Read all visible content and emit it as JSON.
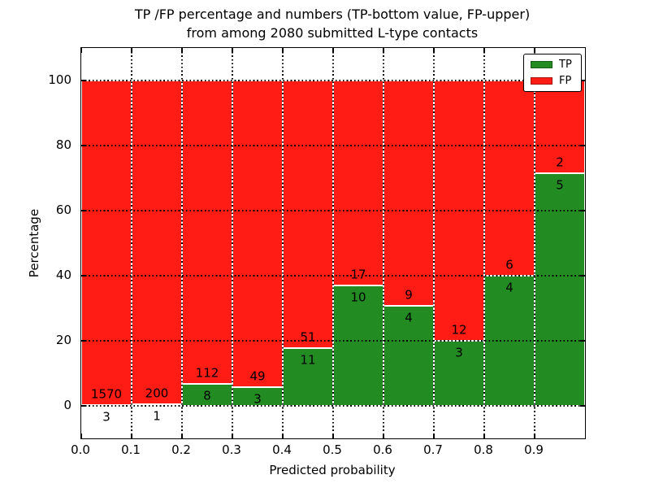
{
  "title": {
    "line1": "TP /FP percentage and numbers (TP-bottom value, FP-upper)",
    "line2": "from among 2080 submitted L-type contacts"
  },
  "axes": {
    "ylabel": "Percentage",
    "xlabel": "Predicted probability",
    "yticks": [
      0,
      20,
      40,
      60,
      80,
      100
    ],
    "xticks": [
      "0.0",
      "0.1",
      "0.2",
      "0.3",
      "0.4",
      "0.5",
      "0.6",
      "0.7",
      "0.8",
      "0.9"
    ],
    "ylim": [
      -10,
      110
    ],
    "xlim": [
      0.0,
      1.0
    ],
    "grid": "dotted"
  },
  "legend": {
    "position": "upper-right",
    "items": [
      {
        "label": "TP",
        "color": "#228b22"
      },
      {
        "label": "FP",
        "color": "#ff1c14"
      }
    ]
  },
  "chart_data": {
    "type": "bar",
    "stacked": true,
    "normalized_to": 100,
    "title": "TP /FP percentage and numbers (TP-bottom value, FP-upper) from among 2080 submitted L-type contacts",
    "xlabel": "Predicted probability",
    "ylabel": "Percentage",
    "total_contacts": 2080,
    "colors": {
      "tp": "#228b22",
      "fp": "#ff1c14"
    },
    "bins": [
      {
        "range": [
          0.0,
          0.1
        ],
        "tp": 3,
        "fp": 1570
      },
      {
        "range": [
          0.1,
          0.2
        ],
        "tp": 1,
        "fp": 200
      },
      {
        "range": [
          0.2,
          0.3
        ],
        "tp": 8,
        "fp": 112
      },
      {
        "range": [
          0.3,
          0.4
        ],
        "tp": 3,
        "fp": 49
      },
      {
        "range": [
          0.4,
          0.5
        ],
        "tp": 11,
        "fp": 51
      },
      {
        "range": [
          0.5,
          0.6
        ],
        "tp": 10,
        "fp": 17
      },
      {
        "range": [
          0.6,
          0.7
        ],
        "tp": 4,
        "fp": 9
      },
      {
        "range": [
          0.7,
          0.8
        ],
        "tp": 3,
        "fp": 12
      },
      {
        "range": [
          0.8,
          0.9
        ],
        "tp": 4,
        "fp": 6
      },
      {
        "range": [
          0.9,
          1.0
        ],
        "tp": 5,
        "fp": 2
      }
    ]
  }
}
